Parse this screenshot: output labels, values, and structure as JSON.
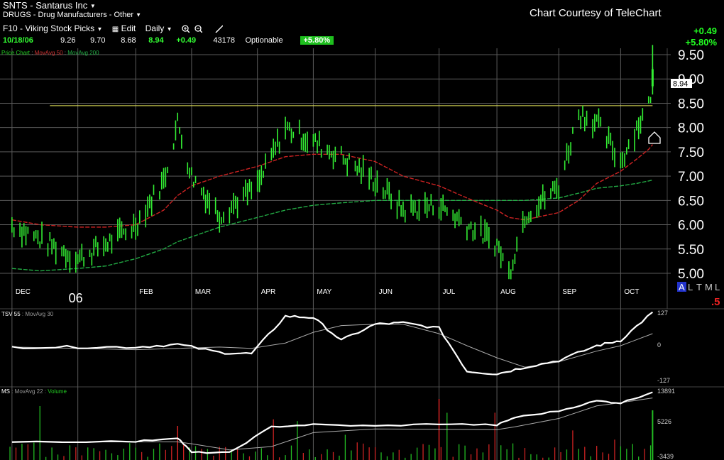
{
  "header": {
    "symbol_title": "SNTS - Santarus Inc",
    "category": "DRUGS - Drug Manufacturers - Other",
    "courtesy": "Chart Courtesy of TeleChart",
    "toolbar": {
      "list": "F10 - Viking Stock Picks",
      "edit": "Edit",
      "period": "Daily"
    },
    "quote": {
      "date": "10/18/06",
      "open": "9.26",
      "high": "9.70",
      "low": "8.68",
      "close": "8.94",
      "change": "+0.49",
      "volume": "43178",
      "optionable": "Optionable",
      "pct_change": "+5.80%"
    },
    "right_change": "+0.49",
    "right_pct": "+5.80%"
  },
  "colors": {
    "price": "#33ee33",
    "ma50": "#cc2222",
    "ma200": "#22aa44",
    "resistance": "#e6e65a",
    "grid": "#5a5a5a",
    "indicator": "#ffffff",
    "indicator_ma": "#aaaaaa",
    "volume_up": "#22bb22",
    "volume_down": "#cc2222"
  },
  "icons": [
    "chevron-down-icon",
    "zoom-in-icon",
    "zoom-out-icon",
    "pencil-icon",
    "up-arrow-marker-icon"
  ],
  "panels": {
    "price_legend": {
      "name": "Price Chart",
      "ma50": "MovAvg 50",
      "ma200": "MovAvg 200"
    },
    "tsv_legend": {
      "name": "TSV 55",
      "ma": "MovAvg 30"
    },
    "ms_legend": {
      "name": "MS",
      "ma": "MovAvg 22",
      "vol": "Volume"
    },
    "tsv_ticks": [
      "127",
      "0",
      "-127"
    ],
    "ms_ticks": [
      "13891",
      "5226",
      "-3439"
    ],
    "last_price_label": "8.94",
    "scale_buttons": [
      "A",
      "L",
      "T",
      "M",
      "L"
    ],
    "scale_value": ".5"
  },
  "chart_data": [
    {
      "type": "line",
      "title": "SNTS - Santarus Inc",
      "x_ticks": [
        "DEC",
        "06",
        "FEB",
        "MAR",
        "APR",
        "MAY",
        "JUN",
        "JUL",
        "AUG",
        "SEP",
        "OCT"
      ],
      "y_ticks": [
        "9.50",
        "9.00",
        "8.50",
        "8.00",
        "7.50",
        "7.00",
        "6.50",
        "6.00",
        "5.50",
        "5.00"
      ],
      "ylim": [
        4.85,
        9.7
      ],
      "x": [
        "2005-12-01",
        "2005-12-15",
        "2006-01-03",
        "2006-01-17",
        "2006-02-01",
        "2006-02-15",
        "2006-02-22",
        "2006-03-01",
        "2006-03-15",
        "2006-04-03",
        "2006-04-17",
        "2006-05-01",
        "2006-05-15",
        "2006-06-01",
        "2006-06-15",
        "2006-07-03",
        "2006-07-17",
        "2006-08-01",
        "2006-08-07",
        "2006-08-15",
        "2006-09-01",
        "2006-09-11",
        "2006-09-20",
        "2006-10-02",
        "2006-10-10",
        "2006-10-16",
        "2006-10-18"
      ],
      "series": [
        {
          "name": "Price Chart",
          "values": [
            6.0,
            5.7,
            5.3,
            5.6,
            6.0,
            6.9,
            8.1,
            7.0,
            6.2,
            6.8,
            8.0,
            7.7,
            7.4,
            6.9,
            6.3,
            6.4,
            6.0,
            5.6,
            5.0,
            6.2,
            6.8,
            8.3,
            8.1,
            7.3,
            8.0,
            8.45,
            8.94
          ]
        },
        {
          "name": "MovAvg 50",
          "values": [
            6.1,
            6.0,
            5.95,
            5.95,
            6.0,
            6.3,
            6.6,
            6.8,
            7.0,
            7.2,
            7.4,
            7.45,
            7.45,
            7.3,
            7.0,
            6.8,
            6.55,
            6.3,
            6.15,
            6.1,
            6.25,
            6.5,
            6.85,
            7.1,
            7.35,
            7.55,
            7.65
          ]
        },
        {
          "name": "MovAvg 200",
          "values": [
            5.1,
            5.05,
            5.1,
            5.15,
            5.3,
            5.5,
            5.65,
            5.75,
            5.95,
            6.15,
            6.3,
            6.4,
            6.45,
            6.5,
            6.5,
            6.5,
            6.5,
            6.5,
            6.5,
            6.5,
            6.55,
            6.65,
            6.75,
            6.8,
            6.85,
            6.9,
            6.92
          ]
        }
      ],
      "resistance_level": 8.45,
      "last_price": 8.94
    },
    {
      "type": "line",
      "ylim": [
        -127,
        127
      ],
      "x": [
        "2005-12-01",
        "2006-01-03",
        "2006-02-01",
        "2006-02-22",
        "2006-03-15",
        "2006-03-31",
        "2006-04-17",
        "2006-05-01",
        "2006-05-15",
        "2006-06-01",
        "2006-06-15",
        "2006-07-03",
        "2006-07-17",
        "2006-08-01",
        "2006-08-15",
        "2006-09-01",
        "2006-09-20",
        "2006-10-02",
        "2006-10-18"
      ],
      "series": [
        {
          "name": "TSV 55",
          "values": [
            -5,
            -5,
            -5,
            5,
            -25,
            -30,
            110,
            105,
            20,
            80,
            85,
            65,
            -95,
            -105,
            -80,
            -55,
            0,
            20,
            125
          ]
        },
        {
          "name": "MovAvg 30",
          "values": [
            -5,
            -10,
            -15,
            -10,
            -5,
            -10,
            10,
            50,
            75,
            80,
            80,
            45,
            0,
            -45,
            -80,
            -60,
            -20,
            0,
            45
          ]
        }
      ]
    },
    {
      "type": "line",
      "ylim": [
        -3439,
        13891
      ],
      "x": [
        "2005-12-01",
        "2006-02-01",
        "2006-02-22",
        "2006-03-01",
        "2006-03-20",
        "2006-04-10",
        "2006-05-01",
        "2006-06-01",
        "2006-07-03",
        "2006-08-01",
        "2006-08-10",
        "2006-09-01",
        "2006-09-20",
        "2006-10-02",
        "2006-10-18"
      ],
      "series": [
        {
          "name": "MS",
          "values": [
            -100,
            -100,
            1000,
            -3100,
            -3200,
            4000,
            4600,
            4200,
            4800,
            4500,
            6600,
            8400,
            11200,
            10600,
            13600
          ]
        },
        {
          "name": "MovAvg 22",
          "values": [
            -200,
            -200,
            -200,
            -700,
            -2400,
            -1500,
            2400,
            3400,
            3300,
            3200,
            4000,
            6300,
            9800,
            10700,
            12000
          ]
        }
      ]
    }
  ]
}
